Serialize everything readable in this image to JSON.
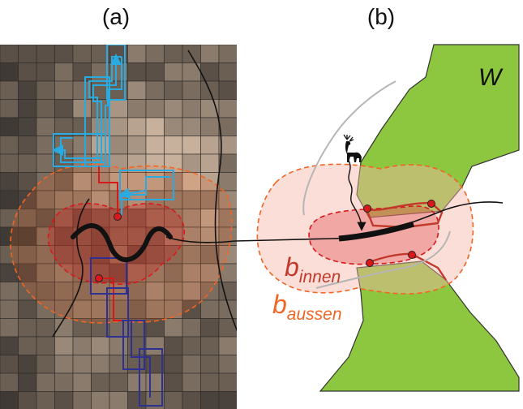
{
  "panels": {
    "a": {
      "label": "(a)"
    },
    "b": {
      "label": "(b)"
    }
  },
  "labels": {
    "forest": "W",
    "inner_b": "b",
    "inner_sub": "innen",
    "outer_b": "b",
    "outer_sub": "aussen"
  },
  "colors": {
    "forest_green": "#8dc63f",
    "inner_buffer": "#e8a0a0",
    "outer_buffer": "#f7d6d0",
    "inner_border": "#c0392b",
    "outer_border": "#f26522",
    "path_blue": "#29abe2",
    "path_navy": "#2e3192",
    "path_red": "#d7191c"
  },
  "icons": [
    "deer-icon"
  ]
}
